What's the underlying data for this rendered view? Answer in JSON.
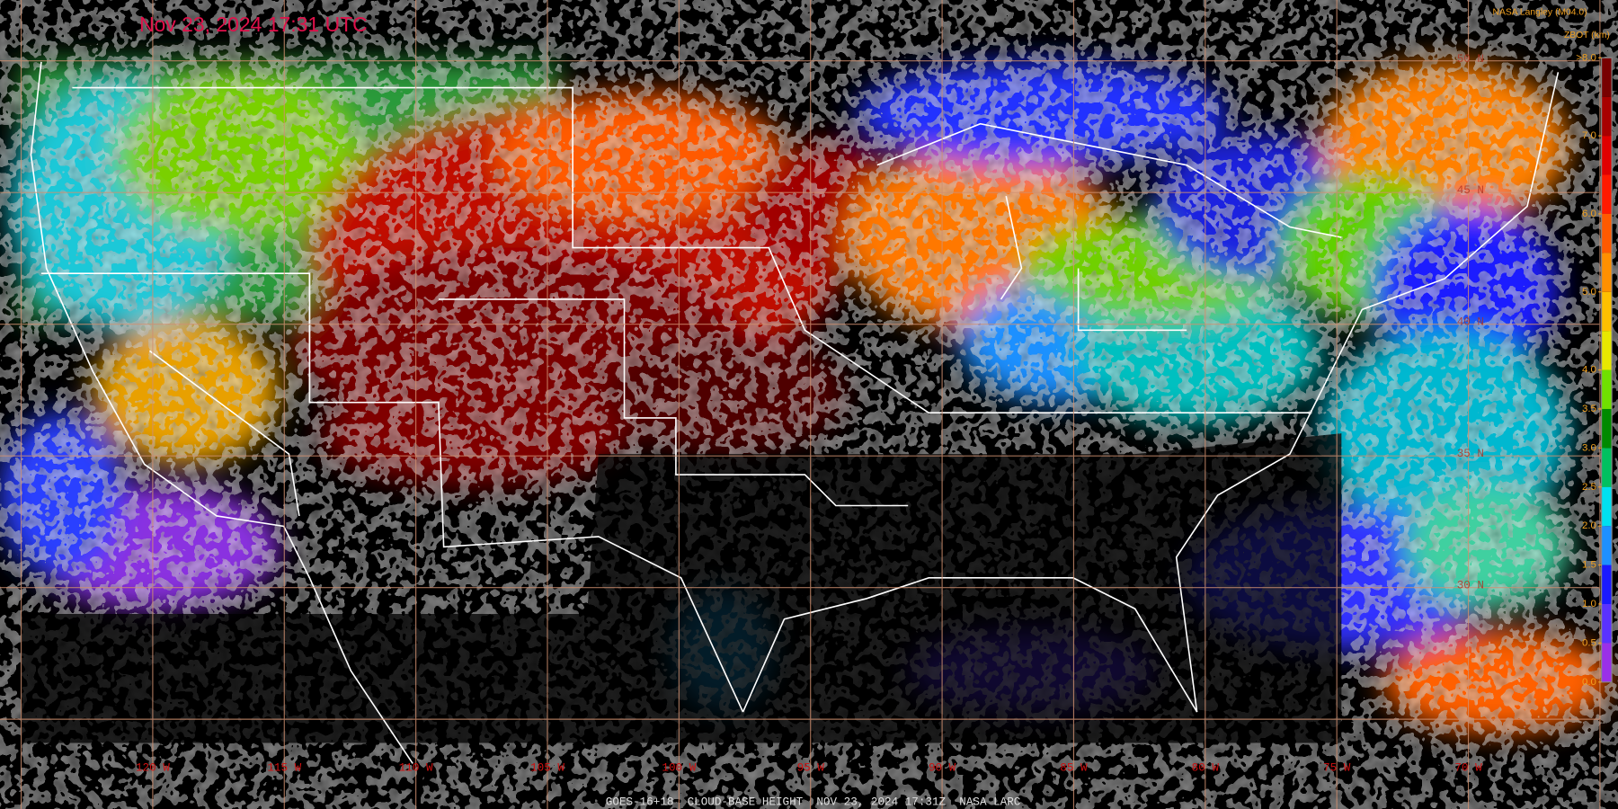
{
  "header": {
    "title": "Nov 23, 2024 17:31 UTC",
    "credit": "NASA Langley (M04.0)"
  },
  "longitude_labels": [
    "120 W",
    "115 W",
    "110 W",
    "105 W",
    "100 W",
    "95 W",
    "90 W",
    "85 W",
    "80 W",
    "75 W",
    "70 W"
  ],
  "latitude_labels": [
    "50 N",
    "45 N",
    "40 N",
    "35 N",
    "30 N"
  ],
  "colorbar": {
    "label": "ZBOT (km)",
    "range": [
      0,
      8
    ],
    "colors": [
      "#9a30e8",
      "#5a32ff",
      "#1a1aff",
      "#1e90ff",
      "#00e0f0",
      "#00c060",
      "#008a00",
      "#70e000",
      "#e8e800",
      "#ffc000",
      "#ff9000",
      "#ff5a00",
      "#ff1a00",
      "#e00000",
      "#a80000",
      "#780000"
    ],
    "ticks": [
      {
        "value": 8,
        "label": ">8.0"
      },
      {
        "value": 7,
        "label": "7.0"
      },
      {
        "value": 6,
        "label": "6.0"
      },
      {
        "value": 5,
        "label": "5.0"
      },
      {
        "value": 4,
        "label": "4.0"
      },
      {
        "value": 3.5,
        "label": "3.5"
      },
      {
        "value": 3,
        "label": "3.0"
      },
      {
        "value": 2.5,
        "label": "2.5"
      },
      {
        "value": 2,
        "label": "2.0"
      },
      {
        "value": 1.5,
        "label": "1.5"
      },
      {
        "value": 1,
        "label": "1.0"
      },
      {
        "value": 0.5,
        "label": "0.5"
      },
      {
        "value": 0,
        "label": "0.0"
      }
    ]
  },
  "footer": "GOES-16+18  CLOUD-BASE HEIGHT  NOV 23, 2024 17:31Z  NASA LARC"
}
